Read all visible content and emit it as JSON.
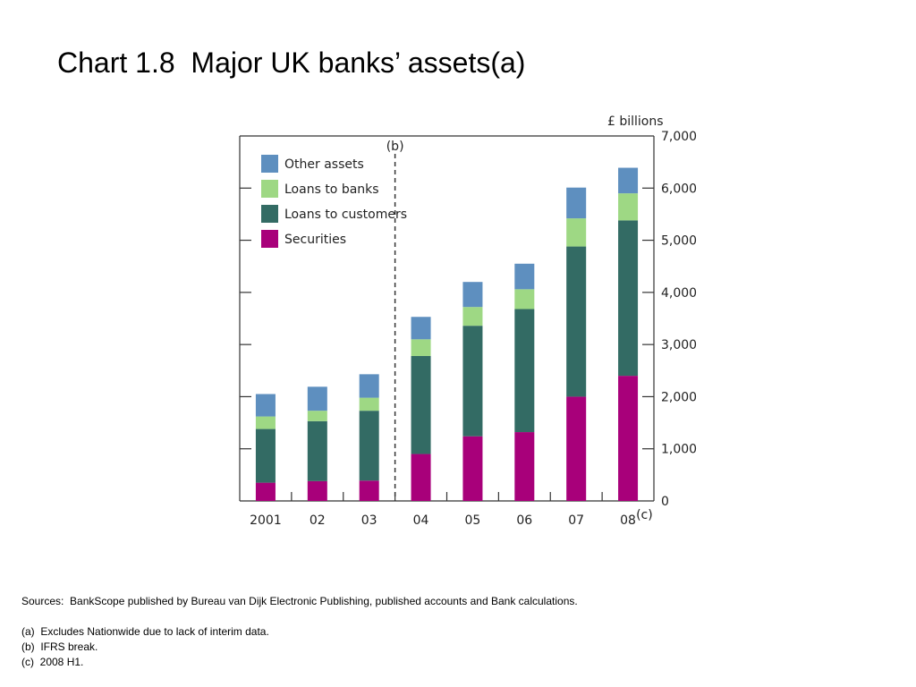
{
  "slide": {
    "title": "Chart 1.8  Major UK banks’ assets(a)",
    "sources": "Sources:  BankScope published by Bureau van Dijk Electronic Publishing, published accounts and Bank calculations.",
    "footnotes": [
      "(a)  Excludes Nationwide due to lack of interim data.",
      "(b)  IFRS break.",
      "(c)  2008 H1."
    ]
  },
  "chart_data": {
    "type": "bar",
    "stacked": true,
    "unit_label": "£ billions",
    "categories": [
      "2001",
      "02",
      "03",
      "04",
      "05",
      "06",
      "07",
      "08"
    ],
    "category_suffix": {
      "08": "(c)"
    },
    "break_marker": {
      "label": "(b)",
      "between": [
        "03",
        "04"
      ]
    },
    "ylim": [
      0,
      7000
    ],
    "yticks": [
      0,
      1000,
      2000,
      3000,
      4000,
      5000,
      6000,
      7000
    ],
    "ytick_labels": [
      "0",
      "1,000",
      "2,000",
      "3,000",
      "4,000",
      "5,000",
      "6,000",
      "7,000"
    ],
    "legend_position": "top-left",
    "grid": false,
    "series": [
      {
        "name": "Securities",
        "color": "#a8007a",
        "values": [
          350,
          380,
          390,
          900,
          1240,
          1320,
          2000,
          2400
        ]
      },
      {
        "name": "Loans to customers",
        "color": "#336b64",
        "values": [
          1030,
          1150,
          1340,
          1880,
          2120,
          2360,
          2880,
          2980
        ]
      },
      {
        "name": "Loans to banks",
        "color": "#9ed884",
        "values": [
          240,
          200,
          250,
          320,
          360,
          380,
          540,
          520
        ]
      },
      {
        "name": "Other assets",
        "color": "#5e8fbf",
        "values": [
          430,
          460,
          450,
          430,
          480,
          490,
          590,
          490
        ]
      }
    ],
    "legend_order": [
      "Other assets",
      "Loans to banks",
      "Loans to customers",
      "Securities"
    ]
  }
}
